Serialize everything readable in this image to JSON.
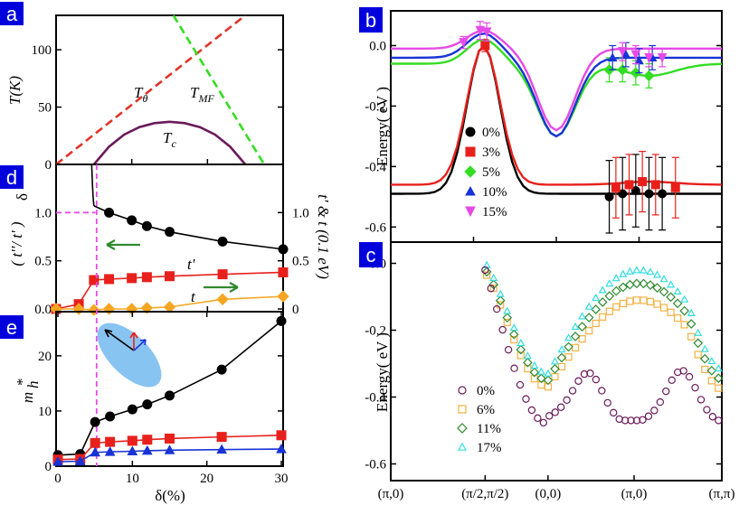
{
  "chart_data": [
    {
      "panel": "a",
      "type": "line",
      "ylabel": "T(K)",
      "xlim": [
        0,
        30
      ],
      "ylim": [
        0,
        130
      ],
      "yticks": [
        "0",
        "50",
        "100"
      ],
      "series": [
        {
          "name": "Tθ",
          "label_main": "T",
          "label_sub": "θ",
          "color": "#e0342a",
          "dash": true,
          "x": [
            0,
            25
          ],
          "y": [
            0,
            130
          ]
        },
        {
          "name": "TMF",
          "label_main": "T",
          "label_sub": "MF",
          "color": "#33dd22",
          "dash": true,
          "x": [
            15.5,
            27.5
          ],
          "y": [
            130,
            0
          ]
        },
        {
          "name": "Tc",
          "label_main": "T",
          "label_sub": "c",
          "color": "#6a1b5a",
          "dash": false,
          "x": [
            5,
            7,
            9,
            11,
            13,
            15,
            17,
            19,
            21,
            23,
            25
          ],
          "y": [
            0,
            15.5,
            26,
            32.5,
            36,
            37.2,
            36,
            32.5,
            26,
            15.5,
            0
          ]
        }
      ]
    },
    {
      "panel": "d",
      "type": "line",
      "ylabel_left": "( t''/ t' )",
      "ylabel_left_sub": "δ",
      "ylabel_right": "t' & t (0.1 eV)",
      "xlim": [
        0,
        30
      ],
      "ylim": [
        0,
        1.5
      ],
      "yticks_left": [
        "0.0",
        "0.5",
        "1.0"
      ],
      "yticks_right": [
        "0",
        "0.5",
        "1.0"
      ],
      "series": [
        {
          "name": "(t''/t')δ",
          "color": "#000000",
          "marker": "circle",
          "x": [
            7,
            10,
            12,
            15,
            22,
            30
          ],
          "y": [
            1.0,
            0.92,
            0.86,
            0.8,
            0.7,
            0.62
          ],
          "line_x": [
            5,
            7,
            10,
            12,
            15,
            22,
            30
          ],
          "line_y": [
            1.07,
            1.0,
            0.92,
            0.86,
            0.8,
            0.7,
            0.62
          ]
        },
        {
          "name": "t'",
          "color": "#e8201c",
          "marker": "square",
          "x": [
            0,
            3,
            5,
            7,
            10,
            12,
            15,
            22,
            30
          ],
          "y": [
            0,
            0.05,
            0.3,
            0.31,
            0.32,
            0.33,
            0.34,
            0.36,
            0.38
          ]
        },
        {
          "name": "t",
          "color": "#f5a623",
          "marker": "diamond",
          "x": [
            0,
            3,
            5,
            7,
            10,
            12,
            15,
            22,
            30
          ],
          "y": [
            0,
            0.0,
            -0.01,
            0.0,
            0.0,
            0.01,
            0.02,
            0.1,
            0.13
          ]
        }
      ],
      "dashed_level": 1.0,
      "dashed_x": 5.2,
      "annotations": {
        "tprime": "t'",
        "t": "t"
      }
    },
    {
      "panel": "e",
      "type": "line",
      "ylabel": "m*h",
      "xlabel": "δ(%)",
      "xlim": [
        0,
        30
      ],
      "ylim": [
        0,
        28
      ],
      "xticks": [
        "0",
        "10",
        "20",
        "30"
      ],
      "yticks": [
        "0",
        "10",
        "20"
      ],
      "series": [
        {
          "name": "black",
          "color": "#000000",
          "marker": "circle",
          "x": [
            0,
            3,
            5,
            7,
            10,
            12,
            15,
            22,
            30
          ],
          "y": [
            2,
            2.2,
            8,
            9,
            10.3,
            11.2,
            12.8,
            17.5,
            26.3
          ]
        },
        {
          "name": "red",
          "color": "#e8201c",
          "marker": "square",
          "x": [
            0,
            3,
            5,
            7,
            10,
            12,
            15,
            22,
            30
          ],
          "y": [
            1.2,
            1.3,
            4.2,
            4.4,
            4.6,
            4.8,
            5.0,
            5.3,
            5.6
          ]
        },
        {
          "name": "blue",
          "color": "#1833d6",
          "marker": "triangle",
          "x": [
            0,
            3,
            5,
            7,
            10,
            12,
            15,
            22,
            30
          ],
          "y": [
            0.8,
            0.9,
            2.5,
            2.6,
            2.7,
            2.8,
            2.9,
            3.0,
            3.1
          ]
        }
      ]
    },
    {
      "panel": "b",
      "type": "line",
      "ylabel": "Energy(eV)",
      "ylim": [
        -0.65,
        0.1
      ],
      "yticks": [
        "0.0",
        "-0.2",
        "-0.4",
        "-0.6"
      ],
      "series": [
        {
          "name": "0%",
          "color": "#000000",
          "marker": "circle"
        },
        {
          "name": "3%",
          "color": "#e8201c",
          "marker": "square"
        },
        {
          "name": "5%",
          "color": "#33dd22",
          "marker": "diamond"
        },
        {
          "name": "10%",
          "color": "#1833d6",
          "marker": "triangle"
        },
        {
          "name": "15%",
          "color": "#e64ae6",
          "marker": "triangle-down"
        }
      ]
    },
    {
      "panel": "c",
      "type": "scatter",
      "ylabel": "Energy(eV)",
      "ylim": [
        -0.65,
        0.05
      ],
      "yticks": [
        "0.0",
        "-0.2",
        "-0.4",
        "-0.6"
      ],
      "xticks": [
        "(π,0)",
        "(π/2,π/2)",
        "(0,0)",
        "(π,0)",
        "(π,π)"
      ],
      "series": [
        {
          "name": "0%",
          "color": "#6a1b5a",
          "marker": "circle-open"
        },
        {
          "name": "6%",
          "color": "#f5b041",
          "marker": "square-open"
        },
        {
          "name": "11%",
          "color": "#2f8a2f",
          "marker": "diamond-open"
        },
        {
          "name": "17%",
          "color": "#33dde0",
          "marker": "triangle-open"
        }
      ]
    }
  ],
  "panel_tags": {
    "a": "a",
    "b": "b",
    "c": "c",
    "d": "d",
    "e": "e"
  },
  "axes_text": {
    "a_ylabel": "T(K)",
    "d_ylabel": "( t''/ t' )",
    "d_ylabel_sub": "δ",
    "d_ylabel_right": "t' & t (0.1 eV)",
    "e_ylabel": "m",
    "e_ylabel_sup": "*",
    "e_ylabel_sub": "h",
    "e_xlabel": "δ(%)",
    "b_ylabel": "Energy( eV )",
    "c_ylabel": "Energy( eV )"
  }
}
